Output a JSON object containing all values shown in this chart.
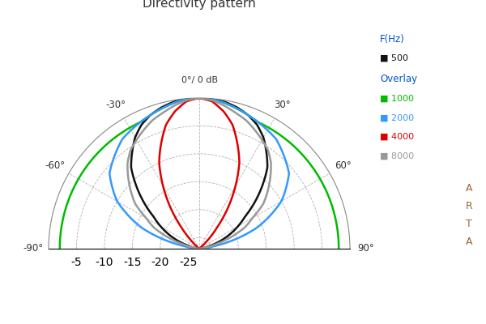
{
  "title": "Directivity pattern",
  "top_label": "0°/ 0 dB",
  "r_ticks": [
    -5,
    -10,
    -15,
    -20,
    -25
  ],
  "r_min": -27,
  "r_max": 0,
  "angle_ticks_deg": [
    -90,
    -60,
    -30,
    0,
    30,
    60,
    90
  ],
  "angle_tick_labels": [
    "-90°",
    "-60°",
    "-30°",
    "",
    "30°",
    "60°",
    "90°"
  ],
  "legend_title": "F(Hz)",
  "legend_entries": [
    {
      "label": "500",
      "color": "#111111",
      "lw": 1.8
    },
    {
      "label": "1000",
      "color": "#00bb00",
      "lw": 1.8
    },
    {
      "label": "2000",
      "color": "#3399ff",
      "lw": 1.8
    },
    {
      "label": "4000",
      "color": "#dd0000",
      "lw": 1.8
    },
    {
      "label": "8000",
      "color": "#999999",
      "lw": 1.8
    }
  ],
  "overlay_label": "Overlay",
  "grid_color": "#aaaaaa",
  "background_color": "#ffffff",
  "arta_label": [
    "A",
    "R",
    "T",
    "A"
  ],
  "curves": {
    "500": {
      "angles": [
        -90,
        -85,
        -80,
        -75,
        -70,
        -65,
        -60,
        -55,
        -50,
        -45,
        -40,
        -35,
        -30,
        -25,
        -20,
        -15,
        -10,
        -5,
        0,
        5,
        10,
        15,
        20,
        25,
        30,
        35,
        40,
        45,
        50,
        55,
        60,
        65,
        70,
        75,
        80,
        85,
        90
      ],
      "dB": [
        -27,
        -27,
        -26,
        -25,
        -23,
        -21,
        -19,
        -17,
        -14,
        -11,
        -8,
        -6,
        -4,
        -2.5,
        -1.5,
        -0.8,
        -0.3,
        -0.1,
        0,
        -0.1,
        -0.3,
        -0.8,
        -1.5,
        -2.5,
        -4,
        -6,
        -8,
        -11,
        -14,
        -17,
        -19,
        -21,
        -23,
        -25,
        -26,
        -27,
        -27
      ]
    },
    "1000": {
      "angles": [
        -90,
        -85,
        -80,
        -75,
        -70,
        -65,
        -60,
        -55,
        -50,
        -45,
        -40,
        -35,
        -30,
        -25,
        -20,
        -15,
        -10,
        -5,
        0,
        5,
        10,
        15,
        20,
        25,
        30,
        35,
        40,
        45,
        50,
        55,
        60,
        65,
        70,
        75,
        80,
        85,
        90
      ],
      "dB": [
        -2,
        -2,
        -2,
        -2,
        -2,
        -2,
        -2,
        -2,
        -2,
        -2,
        -2,
        -2,
        -2,
        -2,
        -1.5,
        -1,
        -0.5,
        -0.1,
        0,
        -0.1,
        -0.5,
        -1,
        -1.5,
        -2,
        -2,
        -2,
        -2,
        -2,
        -2,
        -2,
        -2,
        -2,
        -2,
        -2,
        -2,
        -2,
        -2
      ]
    },
    "2000": {
      "angles": [
        -90,
        -85,
        -80,
        -75,
        -70,
        -65,
        -60,
        -55,
        -50,
        -45,
        -40,
        -35,
        -30,
        -25,
        -20,
        -15,
        -10,
        -5,
        0,
        5,
        10,
        15,
        20,
        25,
        30,
        35,
        40,
        45,
        50,
        55,
        60,
        65,
        70,
        75,
        80,
        85,
        90
      ],
      "dB": [
        -27,
        -26,
        -24,
        -20,
        -16,
        -13,
        -10,
        -8,
        -6,
        -5,
        -4,
        -3,
        -2.5,
        -2,
        -1.5,
        -1,
        -0.5,
        -0.1,
        0,
        -0.1,
        -0.5,
        -1,
        -1.5,
        -2,
        -2.5,
        -3,
        -4,
        -5,
        -6,
        -8,
        -10,
        -13,
        -16,
        -20,
        -24,
        -26,
        -27
      ]
    },
    "4000": {
      "angles": [
        -90,
        -85,
        -80,
        -75,
        -70,
        -65,
        -60,
        -55,
        -50,
        -45,
        -40,
        -35,
        -30,
        -25,
        -20,
        -15,
        -10,
        -5,
        0,
        5,
        10,
        15,
        20,
        25,
        30,
        35,
        40,
        45,
        50,
        55,
        60,
        65,
        70,
        75,
        80,
        85,
        90
      ],
      "dB": [
        -27,
        -27,
        -27,
        -27,
        -27,
        -27,
        -27,
        -27,
        -27,
        -25,
        -22,
        -18,
        -14,
        -10,
        -7,
        -4,
        -2,
        -0.5,
        0,
        -0.5,
        -2,
        -4,
        -7,
        -10,
        -14,
        -18,
        -22,
        -25,
        -27,
        -27,
        -27,
        -27,
        -27,
        -27,
        -27,
        -27,
        -27
      ]
    },
    "8000": {
      "angles": [
        -90,
        -85,
        -80,
        -75,
        -70,
        -65,
        -60,
        -55,
        -50,
        -45,
        -40,
        -35,
        -30,
        -25,
        -20,
        -15,
        -10,
        -5,
        0,
        5,
        10,
        15,
        20,
        25,
        30,
        35,
        40,
        45,
        50,
        55,
        60,
        65,
        70,
        75,
        80,
        85,
        90
      ],
      "dB": [
        -27,
        -27,
        -26,
        -24,
        -21,
        -18,
        -16,
        -13,
        -11,
        -9,
        -7,
        -5.5,
        -4.5,
        -3.5,
        -2.5,
        -1.8,
        -1,
        -0.3,
        0,
        -0.3,
        -1,
        -1.8,
        -2.5,
        -3.5,
        -4.5,
        -5.5,
        -7,
        -9,
        -11,
        -13,
        -16,
        -18,
        -21,
        -24,
        -26,
        -27,
        -27
      ]
    }
  }
}
